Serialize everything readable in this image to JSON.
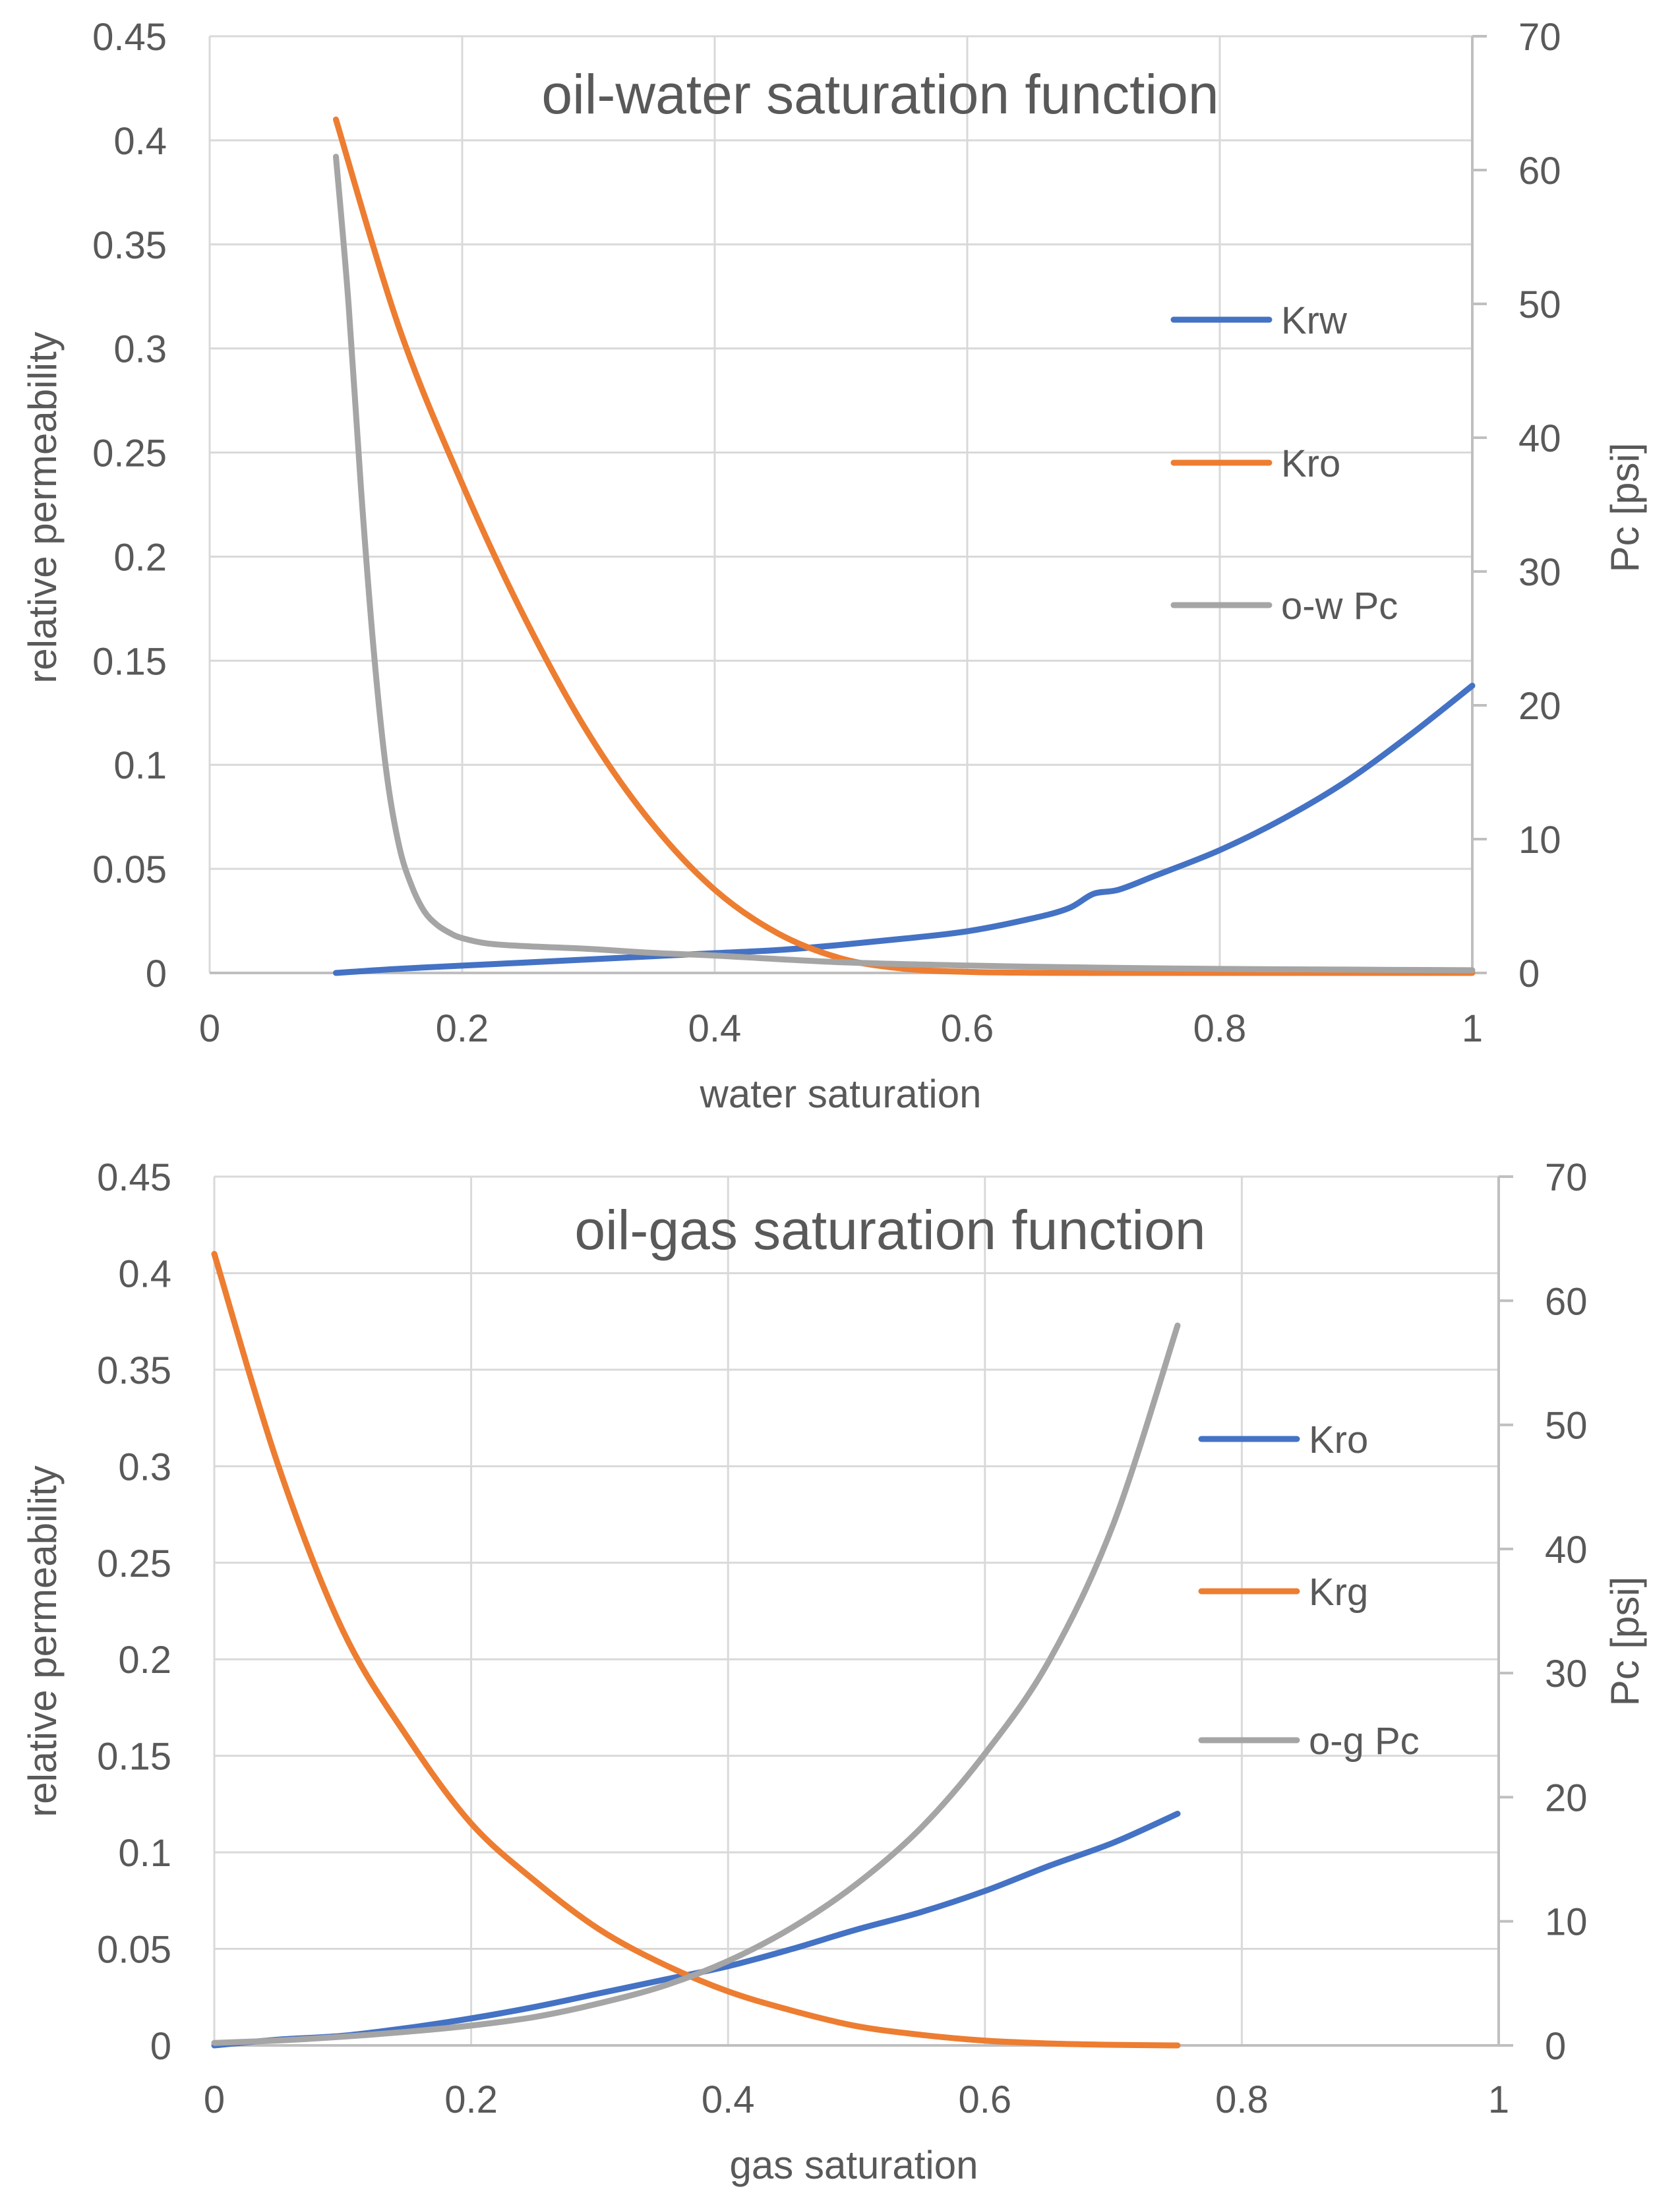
{
  "colors": {
    "blue": "#4472C4",
    "orange": "#ED7D31",
    "gray": "#A5A5A5",
    "grid": "#D9D9D9",
    "text": "#595959",
    "axis": "#BFBFBF"
  },
  "chart_data": [
    {
      "type": "line",
      "title": "oil-water saturation function",
      "xlabel": "water saturation",
      "ylabel": "relative permeability",
      "y2label": "Pc [psi]",
      "xlim": [
        0,
        1
      ],
      "ylim": [
        0,
        0.45
      ],
      "y2lim": [
        0,
        70
      ],
      "x_ticks": [
        "0",
        "0.2",
        "0.4",
        "0.6",
        "0.8",
        "1"
      ],
      "y_ticks": [
        "0",
        "0.05",
        "0.1",
        "0.15",
        "0.2",
        "0.25",
        "0.3",
        "0.35",
        "0.4",
        "0.45"
      ],
      "y2_ticks": [
        "0",
        "10",
        "20",
        "30",
        "40",
        "50",
        "60",
        "70"
      ],
      "grid": true,
      "legend": "right",
      "series": [
        {
          "name": "Krw",
          "axis": "left",
          "color": "blue",
          "x": [
            0.1,
            0.15,
            0.2,
            0.25,
            0.3,
            0.35,
            0.4,
            0.45,
            0.5,
            0.55,
            0.6,
            0.65,
            0.68,
            0.7,
            0.72,
            0.75,
            0.8,
            0.85,
            0.9,
            0.95,
            1.0
          ],
          "y": [
            0.0,
            0.002,
            0.0035,
            0.005,
            0.0065,
            0.008,
            0.0095,
            0.011,
            0.0135,
            0.0165,
            0.02,
            0.026,
            0.031,
            0.038,
            0.04,
            0.047,
            0.059,
            0.074,
            0.092,
            0.114,
            0.138
          ]
        },
        {
          "name": "Kro",
          "axis": "left",
          "color": "orange",
          "x": [
            0.1,
            0.15,
            0.2,
            0.25,
            0.3,
            0.35,
            0.4,
            0.45,
            0.5,
            0.55,
            0.6,
            0.65,
            0.7,
            0.8,
            0.9,
            1.0
          ],
          "y": [
            0.41,
            0.31,
            0.235,
            0.17,
            0.115,
            0.072,
            0.04,
            0.019,
            0.007,
            0.002,
            0.0005,
            0.0001,
            0.0,
            0.0,
            0.0,
            0.0
          ]
        },
        {
          "name": "o-w Pc",
          "axis": "right",
          "color": "gray",
          "x": [
            0.1,
            0.11,
            0.12,
            0.13,
            0.14,
            0.15,
            0.16,
            0.17,
            0.18,
            0.19,
            0.2,
            0.22,
            0.25,
            0.3,
            0.35,
            0.4,
            0.5,
            0.6,
            0.7,
            0.8,
            0.9,
            1.0
          ],
          "y": [
            61,
            50,
            36,
            24,
            15,
            9.5,
            6.5,
            4.6,
            3.6,
            3.0,
            2.6,
            2.2,
            2.0,
            1.8,
            1.5,
            1.3,
            0.8,
            0.55,
            0.4,
            0.3,
            0.25,
            0.2
          ]
        }
      ]
    },
    {
      "type": "line",
      "title": "oil-gas saturation function",
      "xlabel": "gas saturation",
      "ylabel": "relative permeability",
      "y2label": "Pc [psi]",
      "xlim": [
        0,
        1
      ],
      "ylim": [
        0,
        0.45
      ],
      "y2lim": [
        0,
        70
      ],
      "x_ticks": [
        "0",
        "0.2",
        "0.4",
        "0.6",
        "0.8",
        "1"
      ],
      "y_ticks": [
        "0",
        "0.05",
        "0.1",
        "0.15",
        "0.2",
        "0.25",
        "0.3",
        "0.35",
        "0.4",
        "0.45"
      ],
      "y2_ticks": [
        "0",
        "10",
        "20",
        "30",
        "40",
        "50",
        "60",
        "70"
      ],
      "grid": true,
      "legend": "right",
      "series": [
        {
          "name": "Kro",
          "axis": "left",
          "color": "blue",
          "x": [
            0,
            0.05,
            0.1,
            0.15,
            0.2,
            0.25,
            0.3,
            0.35,
            0.4,
            0.45,
            0.5,
            0.55,
            0.6,
            0.65,
            0.7,
            0.75
          ],
          "y": [
            0.0,
            0.003,
            0.005,
            0.009,
            0.014,
            0.02,
            0.027,
            0.034,
            0.041,
            0.05,
            0.06,
            0.069,
            0.08,
            0.093,
            0.105,
            0.12
          ]
        },
        {
          "name": "Krg",
          "axis": "left",
          "color": "orange",
          "x": [
            0,
            0.05,
            0.1,
            0.15,
            0.2,
            0.25,
            0.3,
            0.35,
            0.4,
            0.45,
            0.5,
            0.55,
            0.6,
            0.65,
            0.7,
            0.75
          ],
          "y": [
            0.41,
            0.3,
            0.215,
            0.16,
            0.115,
            0.085,
            0.06,
            0.042,
            0.028,
            0.018,
            0.01,
            0.0055,
            0.0025,
            0.001,
            0.0003,
            0.0
          ]
        },
        {
          "name": "o-g Pc",
          "axis": "right",
          "color": "gray",
          "x": [
            0,
            0.05,
            0.1,
            0.15,
            0.2,
            0.25,
            0.3,
            0.35,
            0.4,
            0.45,
            0.5,
            0.55,
            0.6,
            0.65,
            0.7,
            0.75
          ],
          "y": [
            0.2,
            0.4,
            0.7,
            1.1,
            1.6,
            2.3,
            3.4,
            4.8,
            6.8,
            9.5,
            13.0,
            17.5,
            23.5,
            31.0,
            42.0,
            58.0
          ]
        }
      ]
    }
  ]
}
